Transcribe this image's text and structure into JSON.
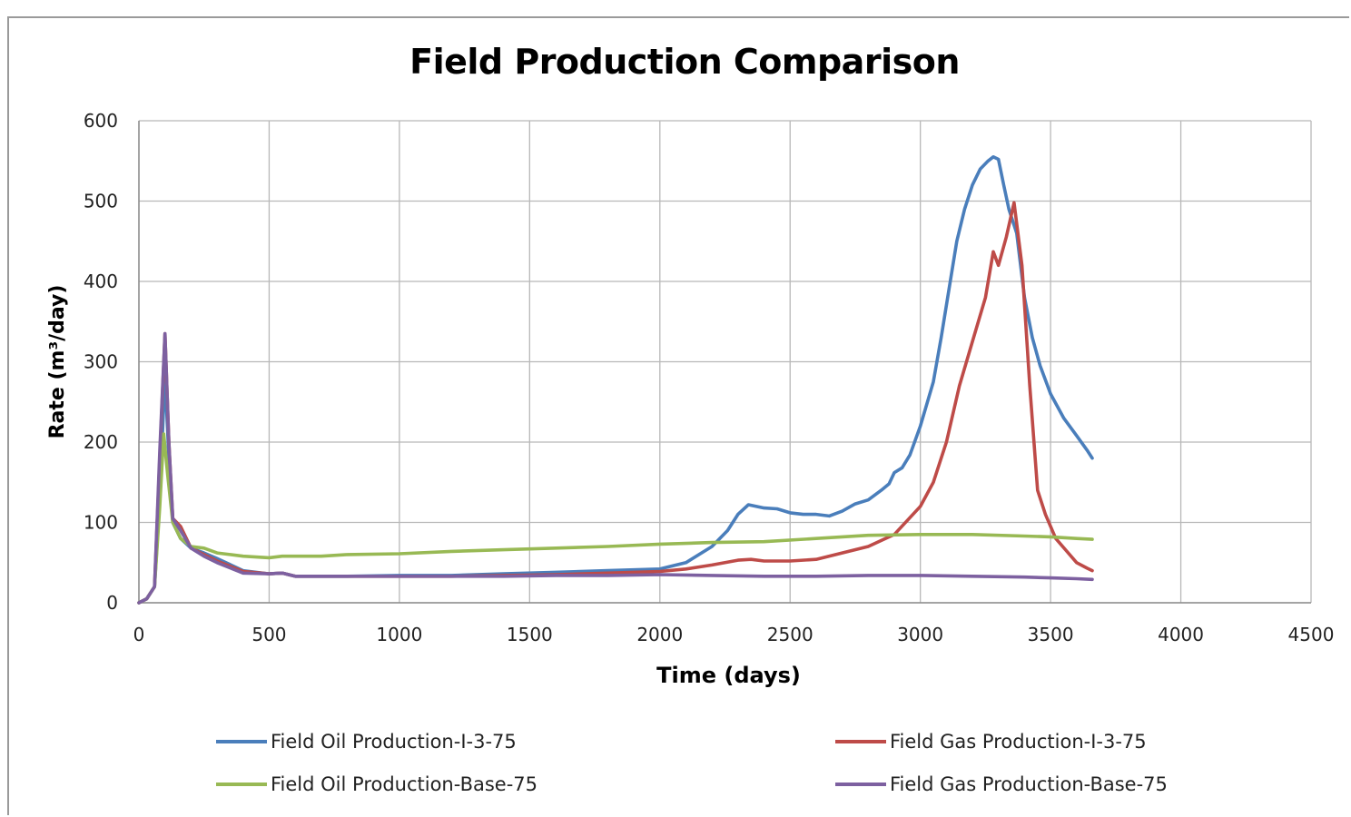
{
  "chart_data": {
    "type": "line",
    "title": "Field Production Comparison",
    "xlabel": "Time (days)",
    "ylabel": "Rate (m³/day)",
    "xlim": [
      0,
      4500
    ],
    "ylim": [
      0,
      600
    ],
    "xticks": [
      0,
      500,
      1000,
      1500,
      2000,
      2500,
      3000,
      3500,
      4000,
      4500
    ],
    "yticks": [
      0,
      100,
      200,
      300,
      400,
      500,
      600
    ],
    "grid": true,
    "legend_position": "bottom",
    "series": [
      {
        "name": "Field Oil Production-I-3-75",
        "color": "#4a7ebb",
        "x": [
          0,
          30,
          60,
          80,
          100,
          115,
          130,
          160,
          200,
          250,
          300,
          400,
          500,
          550,
          600,
          700,
          800,
          1000,
          1200,
          1400,
          1600,
          1800,
          2000,
          2100,
          2200,
          2260,
          2300,
          2340,
          2400,
          2450,
          2500,
          2550,
          2600,
          2650,
          2700,
          2750,
          2800,
          2850,
          2880,
          2900,
          2930,
          2960,
          3000,
          3050,
          3080,
          3110,
          3140,
          3170,
          3200,
          3230,
          3260,
          3280,
          3300,
          3320,
          3340,
          3370,
          3400,
          3430,
          3460,
          3500,
          3550,
          3600,
          3640,
          3660
        ],
        "y": [
          0,
          5,
          20,
          130,
          285,
          180,
          100,
          80,
          68,
          62,
          55,
          40,
          36,
          37,
          33,
          33,
          33,
          34,
          34,
          36,
          38,
          40,
          42,
          50,
          70,
          90,
          110,
          122,
          118,
          117,
          112,
          110,
          110,
          108,
          114,
          123,
          128,
          140,
          148,
          162,
          168,
          184,
          220,
          275,
          330,
          390,
          450,
          490,
          520,
          540,
          550,
          555,
          552,
          520,
          490,
          460,
          380,
          330,
          295,
          260,
          230,
          208,
          190,
          180
        ]
      },
      {
        "name": "Field Gas Production-I-3-75",
        "color": "#be4b48",
        "x": [
          0,
          30,
          60,
          80,
          100,
          115,
          130,
          160,
          200,
          250,
          300,
          400,
          500,
          550,
          600,
          700,
          800,
          1000,
          1200,
          1400,
          1600,
          1800,
          2000,
          2100,
          2200,
          2300,
          2350,
          2400,
          2500,
          2600,
          2700,
          2800,
          2900,
          3000,
          3050,
          3100,
          3150,
          3200,
          3250,
          3280,
          3300,
          3330,
          3360,
          3390,
          3420,
          3450,
          3480,
          3520,
          3560,
          3600,
          3640,
          3660
        ],
        "y": [
          0,
          5,
          20,
          180,
          335,
          200,
          105,
          95,
          68,
          60,
          52,
          39,
          36,
          37,
          33,
          33,
          33,
          33,
          33,
          34,
          35,
          37,
          39,
          42,
          47,
          53,
          54,
          52,
          52,
          54,
          62,
          70,
          85,
          120,
          150,
          200,
          270,
          325,
          380,
          437,
          420,
          455,
          498,
          420,
          270,
          140,
          110,
          80,
          65,
          50,
          43,
          40
        ]
      },
      {
        "name": "Field Oil Production-Base-75",
        "color": "#98b954",
        "x": [
          0,
          30,
          60,
          80,
          95,
          110,
          130,
          160,
          200,
          250,
          300,
          350,
          400,
          500,
          550,
          600,
          700,
          800,
          1000,
          1200,
          1400,
          1600,
          1800,
          2000,
          2200,
          2400,
          2600,
          2800,
          3000,
          3200,
          3400,
          3500,
          3600,
          3660
        ],
        "y": [
          0,
          5,
          20,
          120,
          210,
          160,
          100,
          80,
          70,
          68,
          62,
          60,
          58,
          56,
          58,
          58,
          58,
          60,
          61,
          64,
          66,
          68,
          70,
          73,
          75,
          76,
          80,
          84,
          85,
          85,
          83,
          82,
          80,
          79
        ]
      },
      {
        "name": "Field Gas Production-Base-75",
        "color": "#7d60a0",
        "x": [
          0,
          30,
          60,
          80,
          100,
          115,
          130,
          160,
          200,
          250,
          300,
          400,
          500,
          550,
          600,
          700,
          800,
          1000,
          1200,
          1400,
          1600,
          1800,
          2000,
          2200,
          2400,
          2600,
          2800,
          3000,
          3200,
          3400,
          3500,
          3600,
          3660
        ],
        "y": [
          0,
          5,
          20,
          190,
          335,
          200,
          105,
          90,
          68,
          58,
          50,
          37,
          36,
          37,
          33,
          33,
          33,
          33,
          33,
          33,
          34,
          34,
          35,
          34,
          33,
          33,
          34,
          34,
          33,
          32,
          31,
          30,
          29
        ]
      }
    ]
  }
}
